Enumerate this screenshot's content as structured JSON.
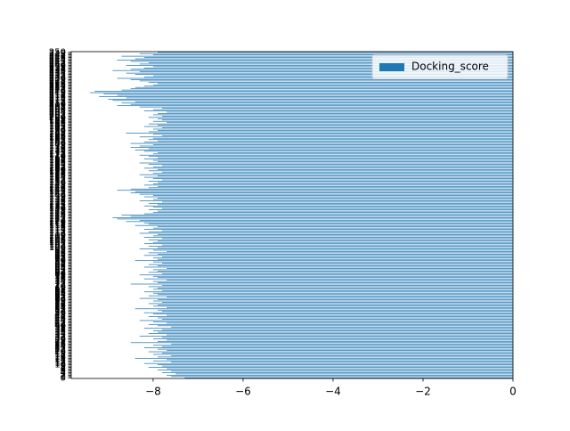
{
  "chart_data": {
    "type": "barh",
    "categories": [
      0,
      1,
      2,
      3,
      4,
      5,
      6,
      7,
      8,
      9,
      10,
      11,
      12,
      13,
      14,
      15,
      16,
      17,
      18,
      19,
      20,
      21,
      22,
      23,
      24,
      25,
      26,
      27,
      28,
      29,
      30,
      31,
      32,
      33,
      34,
      35,
      36,
      37,
      38,
      39,
      40,
      41,
      42,
      43,
      44,
      45,
      46,
      47,
      48,
      49,
      50,
      51,
      52,
      53,
      54,
      55,
      56,
      57,
      58,
      59,
      60,
      61,
      62,
      63,
      64,
      65,
      66,
      67,
      68,
      69,
      70,
      71,
      72,
      73,
      74,
      75,
      76,
      77,
      78,
      79,
      80,
      81,
      82,
      83,
      84,
      85,
      86,
      87,
      88,
      89,
      90,
      91,
      92,
      93,
      94,
      95,
      96,
      97,
      98,
      99,
      100,
      101,
      102,
      103,
      104,
      105,
      106,
      107,
      108,
      109,
      110,
      111,
      112,
      113,
      114,
      115,
      116,
      117,
      118,
      119,
      120,
      121,
      122,
      123,
      124,
      125,
      126,
      127,
      128,
      129,
      130,
      131,
      132,
      133,
      134,
      135,
      136,
      137,
      138,
      139,
      140,
      141,
      142,
      143,
      144,
      145,
      146,
      147,
      148,
      149,
      150,
      151,
      152,
      153,
      154,
      155,
      156,
      157,
      158,
      159,
      160,
      161,
      162,
      163,
      164,
      165,
      166,
      167,
      168,
      169,
      170,
      171,
      172,
      173,
      174,
      175,
      176,
      177,
      178,
      179,
      180,
      181,
      182,
      183,
      184,
      185,
      186,
      187,
      188,
      189,
      190,
      191,
      192,
      193,
      194,
      195,
      196,
      197,
      198,
      199,
      200,
      201,
      202,
      203,
      204,
      205,
      206,
      207,
      208,
      209,
      210,
      211,
      212,
      213,
      214,
      215,
      216,
      217,
      218,
      219,
      220,
      221,
      222,
      223,
      224,
      225,
      226,
      227,
      228,
      229,
      230,
      231,
      232,
      233,
      234,
      235,
      236,
      237,
      238,
      239,
      240,
      241,
      242,
      243,
      244,
      245,
      246,
      247,
      248,
      249,
      250
    ],
    "series": [
      {
        "name": "Docking_score",
        "color": "#1f77b4",
        "values": [
          -7.3,
          -7.6,
          -7.7,
          -7.5,
          -7.8,
          -7.6,
          -7.9,
          -7.7,
          -8.1,
          -7.8,
          -7.9,
          -8.2,
          -7.6,
          -8.0,
          -7.7,
          -8.4,
          -7.9,
          -7.6,
          -8.0,
          -7.8,
          -8.1,
          -7.7,
          -7.9,
          -8.2,
          -7.8,
          -8.0,
          -7.6,
          -8.5,
          -7.9,
          -7.7,
          -8.0,
          -7.8,
          -8.3,
          -7.7,
          -8.1,
          -7.9,
          -8.0,
          -7.8,
          -8.2,
          -7.6,
          -7.9,
          -8.1,
          -7.7,
          -8.0,
          -8.3,
          -7.8,
          -7.9,
          -8.1,
          -7.7,
          -8.0,
          -8.2,
          -7.8,
          -7.9,
          -8.4,
          -7.7,
          -8.0,
          -7.9,
          -8.1,
          -7.8,
          -8.0,
          -7.9,
          -8.3,
          -7.7,
          -8.1,
          -7.9,
          -8.0,
          -8.2,
          -7.8,
          -8.0,
          -7.9,
          -8.1,
          -7.8,
          -8.5,
          -7.9,
          -8.0,
          -7.7,
          -8.2,
          -7.9,
          -8.0,
          -8.3,
          -7.8,
          -8.1,
          -7.9,
          -8.0,
          -7.7,
          -8.2,
          -7.9,
          -8.1,
          -7.8,
          -8.0,
          -8.4,
          -7.9,
          -8.0,
          -7.8,
          -8.2,
          -7.9,
          -8.1,
          -7.7,
          -8.0,
          -8.3,
          -7.9,
          -8.1,
          -7.8,
          -8.2,
          -8.0,
          -7.9,
          -8.1,
          -7.8,
          -8.2,
          -8.0,
          -7.9,
          -8.3,
          -8.1,
          -7.8,
          -8.2,
          -8.0,
          -7.9,
          -8.4,
          -8.1,
          -8.2,
          -8.6,
          -8.3,
          -8.8,
          -8.9,
          -8.5,
          -8.7,
          -8.2,
          -8.0,
          -7.9,
          -8.1,
          -7.8,
          -8.0,
          -8.2,
          -7.9,
          -8.1,
          -7.8,
          -8.3,
          -8.0,
          -7.9,
          -8.2,
          -8.0,
          -8.3,
          -8.5,
          -8.4,
          -8.8,
          -8.5,
          -8.1,
          -7.9,
          -8.2,
          -8.0,
          -7.9,
          -8.1,
          -7.8,
          -8.0,
          -8.2,
          -7.9,
          -8.3,
          -8.0,
          -7.8,
          -8.1,
          -7.9,
          -8.2,
          -8.0,
          -7.8,
          -8.1,
          -8.3,
          -7.9,
          -8.0,
          -8.2,
          -7.9,
          -8.1,
          -8.3,
          -8.0,
          -7.9,
          -8.2,
          -8.4,
          -8.1,
          -8.5,
          -8.3,
          -8.0,
          -8.5,
          -8.2,
          -7.9,
          -8.1,
          -8.0,
          -8.3,
          -7.8,
          -8.0,
          -8.6,
          -8.1,
          -7.9,
          -8.0,
          -7.8,
          -8.2,
          -7.9,
          -8.1,
          -7.7,
          -8.0,
          -7.8,
          -7.9,
          -8.1,
          -7.8,
          -8.0,
          -7.9,
          -7.7,
          -8.2,
          -8.0,
          -7.8,
          -8.3,
          -8.8,
          -8.5,
          -8.7,
          -8.4,
          -8.9,
          -9.0,
          -8.6,
          -9.2,
          -8.8,
          -9.1,
          -9.4,
          -9.3,
          -8.7,
          -8.5,
          -8.4,
          -8.2,
          -8.0,
          -7.9,
          -8.1,
          -8.3,
          -8.5,
          -8.8,
          -8.2,
          -8.0,
          -8.4,
          -8.6,
          -8.3,
          -8.9,
          -8.5,
          -8.2,
          -8.0,
          -8.6,
          -8.3,
          -8.1,
          -8.5,
          -8.8,
          -8.4,
          -8.2,
          -8.7,
          -8.0,
          -8.3,
          -7.9
        ]
      }
    ],
    "xlim": [
      -9.82,
      0
    ],
    "xticks": [
      {
        "value": -8,
        "label": "−8"
      },
      {
        "value": -6,
        "label": "−6"
      },
      {
        "value": -4,
        "label": "−4"
      },
      {
        "value": -2,
        "label": "−2"
      },
      0
    ],
    "legend": "upper right"
  }
}
